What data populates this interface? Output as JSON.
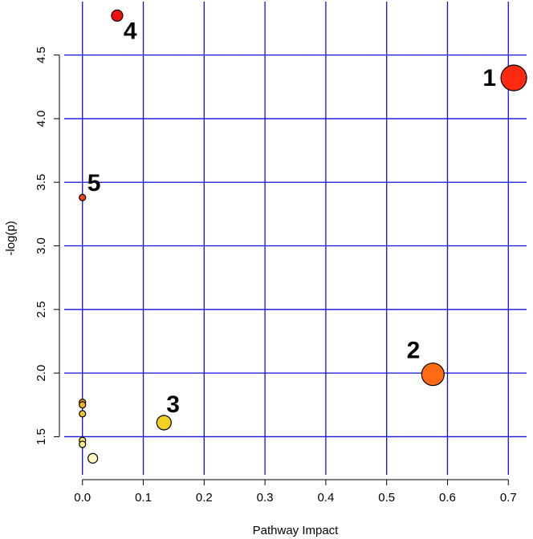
{
  "chart_data": {
    "type": "scatter",
    "title": "",
    "xlabel": "Pathway Impact",
    "ylabel": "-log(p)",
    "xlim": [
      -0.03,
      0.73
    ],
    "ylim": [
      1.2,
      4.92
    ],
    "grid": true,
    "grid_color": "#1010dd",
    "x_ticks": [
      0.0,
      0.1,
      0.2,
      0.3,
      0.4,
      0.5,
      0.6,
      0.7
    ],
    "x_tick_labels": [
      "0.0",
      "0.1",
      "0.2",
      "0.3",
      "0.4",
      "0.5",
      "0.6",
      "0.7"
    ],
    "y_ticks": [
      1.5,
      2.0,
      2.5,
      3.0,
      3.5,
      4.0,
      4.5
    ],
    "y_tick_labels": [
      "1.5",
      "2.0",
      "2.5",
      "3.0",
      "3.5",
      "4.0",
      "4.5"
    ],
    "points": [
      {
        "x": 0.709,
        "y": 4.32,
        "size": 16,
        "color": "#ff2a0f",
        "label": "1"
      },
      {
        "x": 0.576,
        "y": 1.99,
        "size": 14,
        "color": "#ff6a12",
        "label": "2"
      },
      {
        "x": 0.134,
        "y": 1.61,
        "size": 9,
        "color": "#f4d11f",
        "label": "3"
      },
      {
        "x": 0.057,
        "y": 4.81,
        "size": 7,
        "color": "#ee1111",
        "label": "4"
      },
      {
        "x": 0.0,
        "y": 3.38,
        "size": 4,
        "color": "#ee4411",
        "label": "5"
      },
      {
        "x": 0.0,
        "y": 1.77,
        "size": 4,
        "color": "#f59a1e",
        "label": ""
      },
      {
        "x": 0.0,
        "y": 1.75,
        "size": 4,
        "color": "#f3b324",
        "label": ""
      },
      {
        "x": 0.0,
        "y": 1.68,
        "size": 4,
        "color": "#f2c42a",
        "label": ""
      },
      {
        "x": 0.0,
        "y": 1.47,
        "size": 4,
        "color": "#f7e57a",
        "label": ""
      },
      {
        "x": 0.0,
        "y": 1.44,
        "size": 4,
        "color": "#f8ec90",
        "label": ""
      },
      {
        "x": 0.017,
        "y": 1.33,
        "size": 6,
        "color": "#fbf6c2",
        "label": ""
      }
    ]
  }
}
